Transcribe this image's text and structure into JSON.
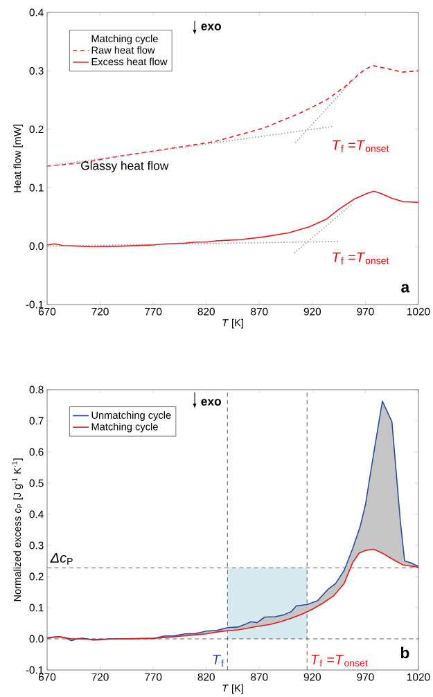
{
  "chart_data": [
    {
      "type": "line",
      "xlabel": "*T* [K]",
      "ylabel": "Heat flow [mW]",
      "legend_title": "Matching cycle",
      "legend": "top left",
      "marker": "none",
      "grid": false,
      "xlim": [
        670,
        1020
      ],
      "xticks": [
        670,
        720,
        770,
        820,
        870,
        920,
        970,
        1020
      ],
      "ylim": [
        -0.1,
        0.4
      ],
      "yticks": [
        -0.1,
        {
          "value": 0,
          "label": "0.0"
        },
        0.1,
        0.2,
        0.3,
        0.4
      ],
      "series": [
        {
          "name": "Raw heat flow",
          "color": "#e8191e",
          "line_style": "dashed",
          "x": [
            670,
            700,
            735,
            782,
            828,
            874,
            910,
            933,
            950,
            963,
            970,
            977,
            990,
            1005,
            1020
          ],
          "values": [
            0.137,
            0.142,
            0.153,
            0.166,
            0.179,
            0.202,
            0.229,
            0.25,
            0.272,
            0.293,
            0.303,
            0.309,
            0.304,
            0.298,
            0.3
          ]
        },
        {
          "name": "Excess heat flow",
          "color": "#e8191e",
          "line_style": "solid",
          "x": [
            670,
            677,
            685,
            700,
            713,
            740,
            770,
            782,
            800,
            810,
            820,
            829,
            840,
            852,
            875,
            898,
            917,
            933,
            945,
            959,
            971,
            978,
            985,
            995,
            1006,
            1020
          ],
          "values": [
            0.002,
            0.004,
            0.001,
            0.0,
            -0.001,
            0.0,
            0.002,
            0.004,
            0.005,
            0.007,
            0.007,
            0.009,
            0.01,
            0.011,
            0.016,
            0.023,
            0.033,
            0.046,
            0.063,
            0.08,
            0.09,
            0.094,
            0.09,
            0.082,
            0.076,
            0.075
          ]
        },
        {
          "color": "#999999",
          "line_style": "dotted",
          "x": [
            670,
            940
          ],
          "values": [
            0.137,
            0.205
          ]
        },
        {
          "color": "#999999",
          "line_style": "dotted",
          "x": [
            904,
            963
          ],
          "values": [
            0.177,
            0.294
          ]
        },
        {
          "color": "#999999",
          "line_style": "dotted",
          "x": [
            670,
            945
          ],
          "values": [
            0.0,
            0.008
          ]
        },
        {
          "color": "#999999",
          "line_style": "dotted",
          "x": [
            903,
            958
          ],
          "values": [
            -0.012,
            0.073
          ]
        }
      ],
      "annotations": [
        "**exo**",
        "Glassy heat flow",
        "*T*$_{f}$ =*T*$_{onset}$",
        "*T*$_{f}$ =*T*$_{onset}$",
        "**a**"
      ]
    },
    {
      "type": "line",
      "xlabel": "*T* [K]",
      "ylabel": "Normalized excess *c*$_{P}$ [J g$^{-1}$ K$^{-1}$]",
      "legend": "top left",
      "marker": "none",
      "grid": false,
      "xlim": [
        670,
        1020
      ],
      "xticks": [
        670,
        720,
        770,
        820,
        870,
        920,
        970,
        1020
      ],
      "ylim": [
        -0.1,
        0.8
      ],
      "yticks": [
        -0.1,
        {
          "value": 0,
          "label": "0.0"
        },
        0.1,
        0.2,
        0.3,
        0.4,
        0.5,
        0.6,
        0.7,
        0.8
      ],
      "series": [
        {
          "name": "Unmatching cycle",
          "color": "#2e4a9e",
          "line_style": "solid",
          "x": [
            670,
            676,
            681,
            687,
            693,
            698,
            703,
            708,
            713,
            720,
            730,
            740,
            750,
            760,
            770,
            780,
            790,
            800,
            810,
            820,
            830,
            840,
            850,
            857,
            862,
            868,
            875,
            885,
            893,
            900,
            905,
            915,
            925,
            935,
            942,
            950,
            958,
            965,
            970,
            978,
            986,
            995,
            1003,
            1007,
            1012,
            1020
          ],
          "values": [
            0.003,
            0.006,
            0.007,
            0.004,
            -0.006,
            0.0,
            0.002,
            0.0,
            -0.004,
            -0.003,
            0.0,
            0.0,
            0.0,
            0.001,
            0.001,
            0.009,
            0.01,
            0.016,
            0.017,
            0.025,
            0.027,
            0.036,
            0.038,
            0.047,
            0.055,
            0.052,
            0.07,
            0.071,
            0.077,
            0.087,
            0.106,
            0.11,
            0.123,
            0.16,
            0.178,
            0.22,
            0.29,
            0.36,
            0.43,
            0.6,
            0.763,
            0.697,
            0.375,
            0.25,
            0.245,
            0.233
          ]
        },
        {
          "name": "Matching cycle",
          "color": "#e8191e",
          "line_style": "solid",
          "x": [
            670,
            676,
            681,
            687,
            693,
            700,
            713,
            740,
            770,
            790,
            800,
            810,
            820,
            830,
            840,
            850,
            860,
            870,
            880,
            890,
            900,
            910,
            920,
            930,
            940,
            950,
            958,
            964,
            970,
            978,
            986,
            996,
            1005,
            1020
          ],
          "values": [
            0.002,
            0.005,
            0.007,
            0.004,
            0.0,
            0.0,
            -0.002,
            0.0,
            0.002,
            0.007,
            0.01,
            0.013,
            0.016,
            0.022,
            0.026,
            0.029,
            0.035,
            0.041,
            0.046,
            0.055,
            0.066,
            0.079,
            0.095,
            0.115,
            0.138,
            0.178,
            0.245,
            0.275,
            0.284,
            0.288,
            0.275,
            0.255,
            0.238,
            0.23
          ]
        }
      ],
      "ref_lines": [
        {
          "axis": "x",
          "value": 840,
          "label": "*T*$_{f}$",
          "line_style": "dashed"
        },
        {
          "axis": "x",
          "value": 915,
          "label": "*T*$_{f}$ =*T*$_{onset}$",
          "line_style": "dashed"
        },
        {
          "axis": "y",
          "value": 0.228,
          "label": "*Δc*$_{P}$",
          "line_style": "dashed"
        },
        {
          "axis": "y",
          "value": 0,
          "line_style": "dashed"
        }
      ],
      "bands": [
        {
          "axis": "x",
          "from": 840,
          "to": 915,
          "color": "#d6eaef"
        }
      ],
      "annotations": [
        "**exo**",
        "**b**"
      ]
    }
  ]
}
